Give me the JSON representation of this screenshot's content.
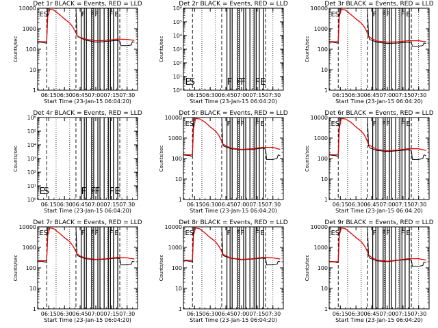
{
  "colors": {
    "events": "#000000",
    "lld": "#e00000",
    "background": "#ffffff"
  },
  "chart_data": [
    {
      "type": "line",
      "title": "Det 1r BLACK = Events, RED = LLD",
      "xlabel": "Start Time (23-Jan-15 06:04:20)",
      "ylabel": "Counts/sec",
      "yscale": "log",
      "ylim": [
        1,
        10000
      ],
      "xlim": [
        "06:04:20",
        "07:40:00"
      ],
      "ytick_labels": [
        "1",
        "10",
        "100",
        "1000",
        "10000"
      ],
      "xtick_labels": [
        "06:15",
        "06:30",
        "06:45",
        "07:00",
        "07:15",
        "07:30"
      ],
      "flags": [
        "E",
        "S",
        "F",
        "F",
        "F",
        "F",
        "E"
      ],
      "has_data": true,
      "series": [
        {
          "color": "#000000",
          "x": [
            "06:04",
            "06:10",
            "06:12",
            "06:13",
            "06:14",
            "06:20",
            "06:25",
            "06:30",
            "06:35",
            "06:40",
            "06:41",
            "06:42",
            "06:43",
            "06:50",
            "07:00",
            "07:10",
            "07:20",
            "07:23",
            "07:24",
            "07:30",
            "07:34",
            "07:35",
            "07:37"
          ],
          "values": [
            230,
            210,
            200,
            200,
            10000,
            10000,
            10000,
            10000,
            10000,
            10000,
            10000,
            480,
            400,
            280,
            220,
            240,
            270,
            250,
            150,
            150,
            160,
            230,
            220
          ]
        },
        {
          "color": "#e00000",
          "x": [
            "06:04",
            "06:10",
            "06:12",
            "06:13",
            "06:14",
            "06:16",
            "06:20",
            "06:25",
            "06:30",
            "06:35",
            "06:38",
            "06:40",
            "06:42",
            "06:43",
            "06:45",
            "06:50",
            "07:00",
            "07:10",
            "07:20",
            "07:30",
            "07:37"
          ],
          "values": [
            240,
            230,
            230,
            240,
            4000,
            9000,
            8000,
            5000,
            3000,
            1900,
            1200,
            800,
            480,
            420,
            380,
            310,
            260,
            270,
            310,
            300,
            270
          ]
        }
      ]
    },
    {
      "type": "line",
      "title": "Det 2r BLACK = Events, RED = LLD",
      "xlabel": "Start Time (23-Jan-15 06:04:20)",
      "ylabel": "Counts/sec",
      "yscale": "log",
      "ylim": [
        1,
        1000000
      ],
      "xlim": [
        "06:04:20",
        "07:40:00"
      ],
      "ytick_labels": [
        "10⁰",
        "10¹",
        "10²",
        "10³",
        "10⁴",
        "10⁵",
        "10⁶"
      ],
      "xtick_labels": [
        "06:15",
        "06:30",
        "06:45",
        "07:00",
        "07:15",
        "07:30"
      ],
      "flags": [
        "E",
        "S",
        "F",
        "F",
        "F",
        "F",
        "E"
      ],
      "has_data": false,
      "series": []
    },
    {
      "type": "line",
      "title": "Det 3r BLACK = Events, RED = LLD",
      "xlabel": "Start Time (23-Jan-15 06:04:20)",
      "ylabel": "Counts/sec",
      "yscale": "log",
      "ylim": [
        1,
        10000
      ],
      "xlim": [
        "06:04:20",
        "07:40:00"
      ],
      "ytick_labels": [
        "1",
        "10",
        "100",
        "1000",
        "10000"
      ],
      "xtick_labels": [
        "06:15",
        "06:30",
        "06:45",
        "07:00",
        "07:15",
        "07:30"
      ],
      "flags": [
        "E",
        "S",
        "F",
        "F",
        "F",
        "F",
        "E"
      ],
      "has_data": true,
      "series": [
        {
          "color": "#000000",
          "x": [
            "06:04",
            "06:10",
            "06:12",
            "06:13",
            "06:14",
            "06:20",
            "06:30",
            "06:40",
            "06:41",
            "06:42",
            "06:43",
            "06:50",
            "07:00",
            "07:10",
            "07:20",
            "07:23",
            "07:24",
            "07:30",
            "07:34",
            "07:35",
            "07:37"
          ],
          "values": [
            230,
            210,
            200,
            200,
            10000,
            10000,
            10000,
            10000,
            10000,
            420,
            300,
            220,
            190,
            200,
            220,
            210,
            140,
            140,
            150,
            200,
            190
          ]
        },
        {
          "color": "#e00000",
          "x": [
            "06:04",
            "06:10",
            "06:12",
            "06:13",
            "06:14",
            "06:16",
            "06:20",
            "06:25",
            "06:30",
            "06:35",
            "06:38",
            "06:40",
            "06:42",
            "06:45",
            "06:50",
            "07:00",
            "07:10",
            "07:20",
            "07:30",
            "07:37"
          ],
          "values": [
            240,
            230,
            230,
            240,
            4000,
            9000,
            8000,
            5000,
            3000,
            1900,
            1200,
            800,
            430,
            330,
            250,
            220,
            230,
            260,
            260,
            230
          ]
        }
      ]
    },
    {
      "type": "line",
      "title": "Det 4r BLACK = Events, RED = LLD",
      "xlabel": "Start Time (23-Jan-15 06:04:20)",
      "ylabel": "Counts/sec",
      "yscale": "log",
      "ylim": [
        1,
        1000000
      ],
      "xlim": [
        "06:04:20",
        "07:40:00"
      ],
      "ytick_labels": [
        "10⁰",
        "10¹",
        "10²",
        "10³",
        "10⁴",
        "10⁵",
        "10⁶"
      ],
      "xtick_labels": [
        "06:15",
        "06:30",
        "06:45",
        "07:00",
        "07:15",
        "07:30"
      ],
      "flags": [
        "E",
        "S",
        "F",
        "F",
        "F",
        "F",
        "E"
      ],
      "has_data": false,
      "series": []
    },
    {
      "type": "line",
      "title": "Det 5r BLACK = Events, RED = LLD",
      "xlabel": "Start Time (23-Jan-15 06:04:20)",
      "ylabel": "Counts/sec",
      "yscale": "log",
      "ylim": [
        1,
        10000
      ],
      "xlim": [
        "06:04:20",
        "07:40:00"
      ],
      "ytick_labels": [
        "1",
        "10",
        "100",
        "1000",
        "10000"
      ],
      "xtick_labels": [
        "06:15",
        "06:30",
        "06:45",
        "07:00",
        "07:15",
        "07:30"
      ],
      "flags": [
        "E",
        "S",
        "F",
        "F",
        "F",
        "F",
        "E"
      ],
      "has_data": true,
      "series": [
        {
          "color": "#000000",
          "x": [
            "06:04",
            "06:10",
            "06:12",
            "06:13",
            "06:14",
            "06:20",
            "06:30",
            "06:40",
            "06:41",
            "06:42",
            "06:43",
            "06:50",
            "07:00",
            "07:10",
            "07:20",
            "07:23",
            "07:24",
            "07:30",
            "07:34",
            "07:35",
            "07:37"
          ],
          "values": [
            150,
            140,
            130,
            130,
            10000,
            10000,
            10000,
            10000,
            10000,
            480,
            400,
            300,
            270,
            280,
            320,
            290,
            90,
            90,
            100,
            150,
            140
          ]
        },
        {
          "color": "#e00000",
          "x": [
            "06:04",
            "06:10",
            "06:12",
            "06:13",
            "06:14",
            "06:16",
            "06:20",
            "06:25",
            "06:30",
            "06:35",
            "06:38",
            "06:40",
            "06:42",
            "06:45",
            "06:50",
            "07:00",
            "07:10",
            "07:20",
            "07:30",
            "07:37"
          ],
          "values": [
            160,
            150,
            150,
            160,
            3000,
            9000,
            8500,
            6000,
            3500,
            2200,
            1400,
            900,
            520,
            420,
            320,
            280,
            300,
            350,
            350,
            280
          ]
        }
      ]
    },
    {
      "type": "line",
      "title": "Det 6r BLACK = Events, RED = LLD",
      "xlabel": "Start Time (23-Jan-15 06:04:20)",
      "ylabel": "Counts/sec",
      "yscale": "log",
      "ylim": [
        1,
        10000
      ],
      "xlim": [
        "06:04:20",
        "07:40:00"
      ],
      "ytick_labels": [
        "1",
        "10",
        "100",
        "1000",
        "10000"
      ],
      "xtick_labels": [
        "06:15",
        "06:30",
        "06:45",
        "07:00",
        "07:15",
        "07:30"
      ],
      "flags": [
        "E",
        "S",
        "F",
        "F",
        "F",
        "F",
        "E"
      ],
      "has_data": true,
      "series": [
        {
          "color": "#000000",
          "x": [
            "06:04",
            "06:10",
            "06:12",
            "06:13",
            "06:14",
            "06:20",
            "06:30",
            "06:40",
            "06:41",
            "06:42",
            "06:43",
            "06:50",
            "07:00",
            "07:10",
            "07:20",
            "07:23",
            "07:24",
            "07:30",
            "07:34",
            "07:35",
            "07:37"
          ],
          "values": [
            150,
            140,
            130,
            130,
            10000,
            10000,
            10000,
            10000,
            10000,
            420,
            330,
            250,
            220,
            240,
            270,
            250,
            90,
            90,
            100,
            150,
            140
          ]
        },
        {
          "color": "#e00000",
          "x": [
            "06:04",
            "06:10",
            "06:12",
            "06:13",
            "06:14",
            "06:16",
            "06:20",
            "06:25",
            "06:30",
            "06:35",
            "06:38",
            "06:40",
            "06:42",
            "06:45",
            "06:50",
            "07:00",
            "07:10",
            "07:20",
            "07:30",
            "07:37"
          ],
          "values": [
            160,
            150,
            150,
            160,
            3000,
            9000,
            8500,
            6000,
            3500,
            2200,
            1400,
            900,
            480,
            380,
            280,
            240,
            260,
            300,
            300,
            250
          ]
        }
      ]
    },
    {
      "type": "line",
      "title": "Det 7r BLACK = Events, RED = LLD",
      "xlabel": "Start Time (23-Jan-15 06:04:20)",
      "ylabel": "Counts/sec",
      "yscale": "log",
      "ylim": [
        1,
        10000
      ],
      "xlim": [
        "06:04:20",
        "07:40:00"
      ],
      "ytick_labels": [
        "1",
        "10",
        "100",
        "1000",
        "10000"
      ],
      "xtick_labels": [
        "06:15",
        "06:30",
        "06:45",
        "07:00",
        "07:15",
        "07:30"
      ],
      "flags": [
        "E",
        "S",
        "F",
        "F",
        "F",
        "F",
        "E"
      ],
      "has_data": true,
      "series": [
        {
          "color": "#000000",
          "x": [
            "06:04",
            "06:10",
            "06:12",
            "06:13",
            "06:14",
            "06:20",
            "06:30",
            "06:40",
            "06:41",
            "06:42",
            "06:43",
            "06:50",
            "07:00",
            "07:10",
            "07:20",
            "07:23",
            "07:24",
            "07:30",
            "07:34",
            "07:35",
            "07:37"
          ],
          "values": [
            220,
            200,
            190,
            190,
            10000,
            10000,
            10000,
            10000,
            10000,
            450,
            380,
            280,
            250,
            270,
            300,
            280,
            140,
            140,
            150,
            210,
            200
          ]
        },
        {
          "color": "#e00000",
          "x": [
            "06:04",
            "06:10",
            "06:12",
            "06:13",
            "06:14",
            "06:16",
            "06:20",
            "06:25",
            "06:30",
            "06:35",
            "06:38",
            "06:40",
            "06:42",
            "06:45",
            "06:50",
            "07:00",
            "07:10",
            "07:20",
            "07:30",
            "07:37"
          ],
          "values": [
            230,
            220,
            220,
            230,
            4000,
            9000,
            8000,
            5000,
            3000,
            1900,
            1200,
            800,
            480,
            380,
            300,
            260,
            280,
            320,
            310,
            270
          ]
        }
      ]
    },
    {
      "type": "line",
      "title": "Det 8r BLACK = Events, RED = LLD",
      "xlabel": "Start Time (23-Jan-15 06:04:20)",
      "ylabel": "Counts/sec",
      "yscale": "log",
      "ylim": [
        1,
        10000
      ],
      "xlim": [
        "06:04:20",
        "07:40:00"
      ],
      "ytick_labels": [
        "1",
        "10",
        "100",
        "1000",
        "10000"
      ],
      "xtick_labels": [
        "06:15",
        "06:30",
        "06:45",
        "07:00",
        "07:15",
        "07:30"
      ],
      "flags": [
        "E",
        "S",
        "F",
        "F",
        "F",
        "F",
        "E"
      ],
      "has_data": true,
      "series": [
        {
          "color": "#000000",
          "x": [
            "06:04",
            "06:10",
            "06:12",
            "06:13",
            "06:14",
            "06:20",
            "06:30",
            "06:40",
            "06:41",
            "06:42",
            "06:43",
            "06:50",
            "07:00",
            "07:10",
            "07:20",
            "07:23",
            "07:24",
            "07:30",
            "07:34",
            "07:35",
            "07:37"
          ],
          "values": [
            230,
            210,
            200,
            200,
            10000,
            10000,
            10000,
            10000,
            10000,
            450,
            380,
            290,
            250,
            270,
            300,
            280,
            140,
            140,
            150,
            210,
            200
          ]
        },
        {
          "color": "#e00000",
          "x": [
            "06:04",
            "06:10",
            "06:12",
            "06:13",
            "06:14",
            "06:16",
            "06:20",
            "06:25",
            "06:30",
            "06:35",
            "06:38",
            "06:40",
            "06:42",
            "06:45",
            "06:50",
            "07:00",
            "07:10",
            "07:20",
            "07:30",
            "07:37"
          ],
          "values": [
            240,
            230,
            230,
            240,
            4000,
            9000,
            8000,
            5000,
            3000,
            1900,
            1200,
            800,
            480,
            380,
            300,
            260,
            280,
            320,
            310,
            270
          ]
        }
      ]
    },
    {
      "type": "line",
      "title": "Det 9r BLACK = Events, RED = LLD",
      "xlabel": "Start Time (23-Jan-15 06:04:20)",
      "ylabel": "Counts/sec",
      "yscale": "log",
      "ylim": [
        1,
        10000
      ],
      "xlim": [
        "06:04:20",
        "07:40:00"
      ],
      "ytick_labels": [
        "1",
        "10",
        "100",
        "1000",
        "10000"
      ],
      "xtick_labels": [
        "06:15",
        "06:30",
        "06:45",
        "07:00",
        "07:15",
        "07:30"
      ],
      "flags": [
        "E",
        "S",
        "F",
        "F",
        "F",
        "F",
        "E"
      ],
      "has_data": true,
      "series": [
        {
          "color": "#000000",
          "x": [
            "06:04",
            "06:10",
            "06:12",
            "06:13",
            "06:14",
            "06:20",
            "06:30",
            "06:40",
            "06:41",
            "06:42",
            "06:43",
            "06:50",
            "07:00",
            "07:10",
            "07:20",
            "07:23",
            "07:24",
            "07:30",
            "07:34",
            "07:35",
            "07:37"
          ],
          "values": [
            200,
            190,
            180,
            180,
            10000,
            10000,
            10000,
            10000,
            10000,
            400,
            300,
            220,
            200,
            230,
            260,
            240,
            120,
            120,
            130,
            190,
            180
          ]
        },
        {
          "color": "#e00000",
          "x": [
            "06:04",
            "06:10",
            "06:12",
            "06:13",
            "06:14",
            "06:16",
            "06:20",
            "06:25",
            "06:30",
            "06:35",
            "06:38",
            "06:40",
            "06:42",
            "06:45",
            "06:50",
            "07:00",
            "07:10",
            "07:20",
            "07:30",
            "07:37"
          ],
          "values": [
            210,
            200,
            200,
            210,
            4000,
            9000,
            8000,
            5000,
            3000,
            1900,
            1200,
            800,
            430,
            320,
            240,
            210,
            240,
            280,
            280,
            240
          ]
        }
      ]
    }
  ]
}
